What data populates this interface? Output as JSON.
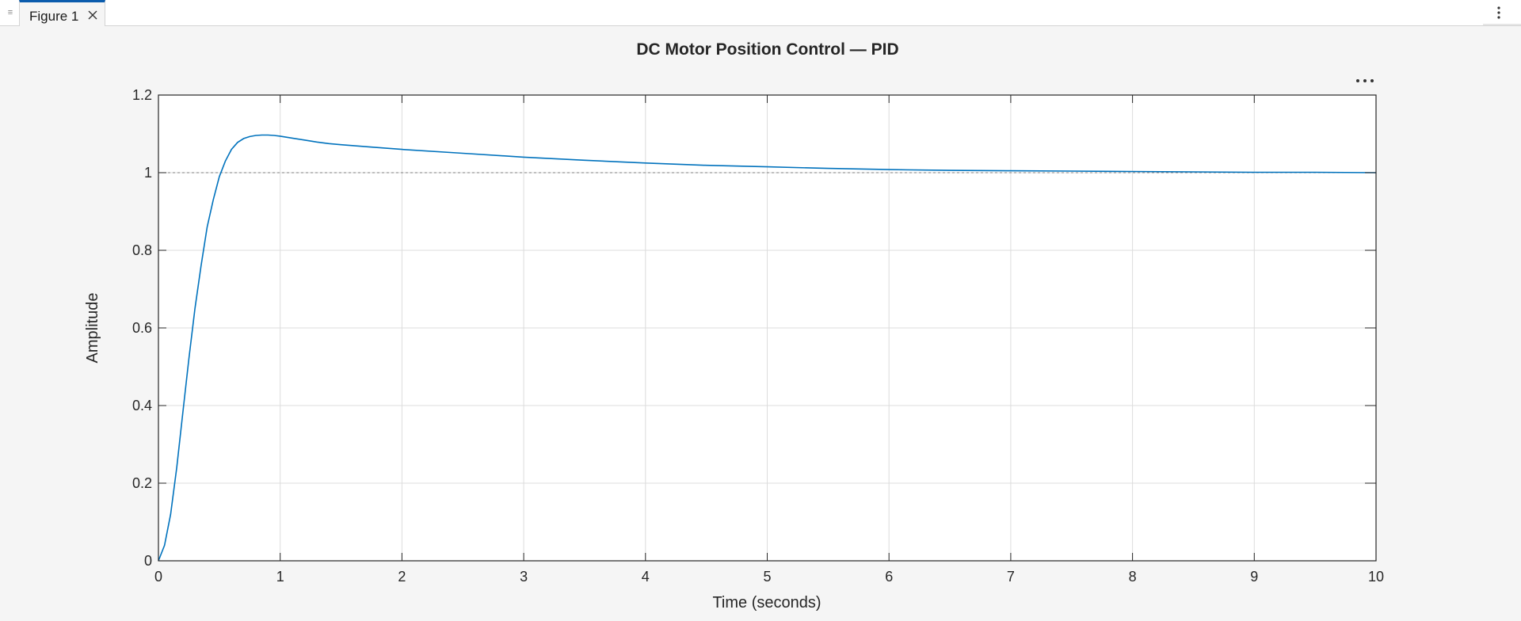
{
  "window": {
    "tab_label": "Figure 1",
    "grip_icon": "drag-handle-icon",
    "close_icon": "close-icon",
    "menu_icon": "vertical-ellipsis-icon"
  },
  "axes_toolbar": {
    "icon": "horizontal-ellipsis-icon"
  },
  "colors": {
    "series": "#0072bd",
    "reference": "#808080",
    "accent": "#0b5cad"
  },
  "chart_data": {
    "type": "line",
    "title": "DC Motor Position Control — PID",
    "xlabel": "Time (seconds)",
    "ylabel": "Amplitude",
    "xlim": [
      0,
      10
    ],
    "ylim": [
      0,
      1.2
    ],
    "xticks": [
      "0",
      "1",
      "2",
      "3",
      "4",
      "5",
      "6",
      "7",
      "8",
      "9",
      "10"
    ],
    "yticks": [
      "0",
      "0.2",
      "0.4",
      "0.6",
      "0.8",
      "1",
      "1.2"
    ],
    "grid": true,
    "reference_line": {
      "y": 1,
      "style": "dotted"
    },
    "series": [
      {
        "x": [
          0,
          0.05,
          0.1,
          0.15,
          0.2,
          0.25,
          0.3,
          0.35,
          0.4,
          0.45,
          0.5,
          0.55,
          0.6,
          0.65,
          0.7,
          0.75,
          0.8,
          0.85,
          0.9,
          0.95,
          1.0,
          1.1,
          1.2,
          1.3,
          1.4,
          1.5,
          1.75,
          2.0,
          2.5,
          3.0,
          3.5,
          4.0,
          4.5,
          5.0,
          5.5,
          6.0,
          6.5,
          7.0,
          7.5,
          8.0,
          8.5,
          9.0,
          9.5,
          10.0
        ],
        "values": [
          0,
          0.04,
          0.12,
          0.24,
          0.38,
          0.52,
          0.65,
          0.76,
          0.86,
          0.93,
          0.99,
          1.03,
          1.06,
          1.078,
          1.088,
          1.093,
          1.096,
          1.097,
          1.097,
          1.096,
          1.094,
          1.089,
          1.084,
          1.079,
          1.075,
          1.072,
          1.066,
          1.06,
          1.05,
          1.04,
          1.032,
          1.025,
          1.019,
          1.015,
          1.011,
          1.008,
          1.006,
          1.005,
          1.004,
          1.003,
          1.002,
          1.001,
          1.001,
          1.0
        ]
      }
    ]
  }
}
